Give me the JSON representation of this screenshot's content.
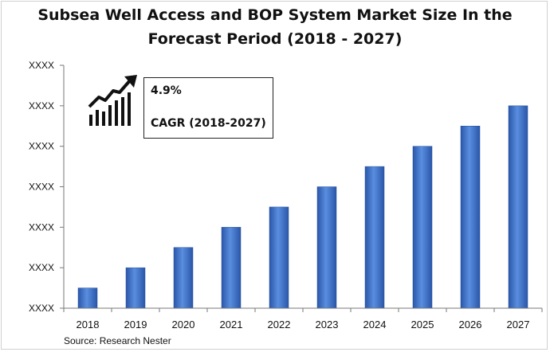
{
  "chart_data": {
    "type": "bar",
    "title": "Subsea Well Access and BOP System Market Size In the Forecast Period (2018 - 2027)",
    "title_lines": [
      "Subsea Well Access and BOP System Market Size In the",
      "Forecast Period (2018 - 2027)"
    ],
    "categories": [
      "2018",
      "2019",
      "2020",
      "2021",
      "2022",
      "2023",
      "2024",
      "2025",
      "2026",
      "2027"
    ],
    "values": [
      1.0,
      2.0,
      3.0,
      4.0,
      5.0,
      6.0,
      7.0,
      8.0,
      9.0,
      10.0
    ],
    "ylim": [
      0,
      12
    ],
    "yticks": [
      0,
      2,
      4,
      6,
      8,
      10,
      12
    ],
    "ytick_labels": [
      "XXXX",
      "XXXX",
      "XXXX",
      "XXXX",
      "XXXX",
      "XXXX",
      "XXXX"
    ],
    "xlabel": "",
    "ylabel": "",
    "grid": false,
    "bar_color": "#3a6fc4",
    "callout": {
      "value": "4.9%",
      "label": "CAGR (2018-2027)"
    }
  },
  "source": "Source: Research Nester",
  "icons": [
    "growth-chart-icon"
  ]
}
